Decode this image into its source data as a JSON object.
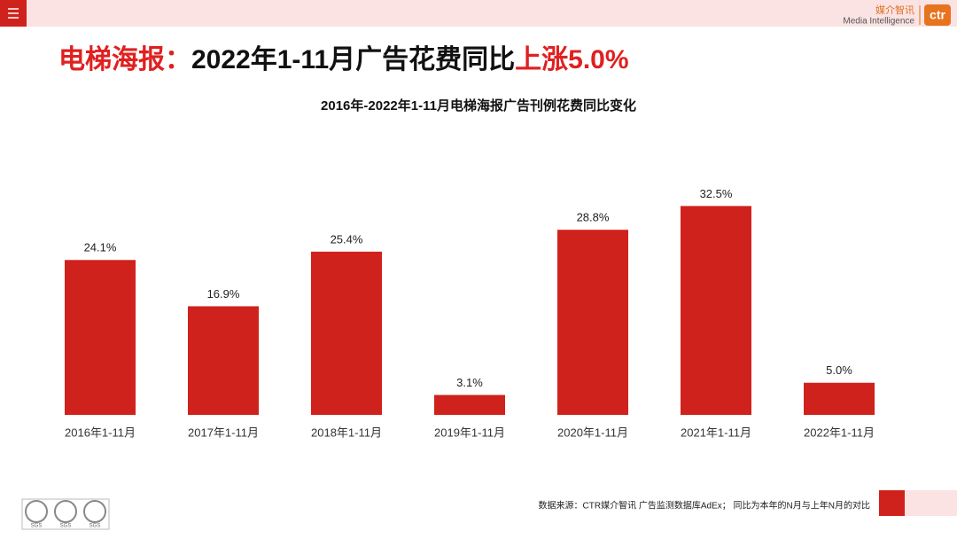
{
  "header": {
    "brand_cn": "媒介智讯",
    "brand_en": "Media Intelligence",
    "logo": "ctr",
    "title_parts": [
      "电梯海报：",
      "2022年1-11月广告花费同比",
      "上涨5.0%"
    ]
  },
  "chart_data": {
    "type": "bar",
    "title": "2016年-2022年1-11月电梯海报广告刊例花费同比变化",
    "categories": [
      "2016年1-11月",
      "2017年1-11月",
      "2018年1-11月",
      "2019年1-11月",
      "2020年1-11月",
      "2021年1-11月",
      "2022年1-11月"
    ],
    "values": [
      24.1,
      16.9,
      25.4,
      3.1,
      28.8,
      32.5,
      5.0
    ],
    "value_labels": [
      "24.1%",
      "16.9%",
      "25.4%",
      "3.1%",
      "28.8%",
      "32.5%",
      "5.0%"
    ],
    "color": "#d0221c"
  },
  "footer": {
    "source": "数据来源：CTR媒介智讯 广告监测数据库AdEx； 同比为本年的N月与上年N月的对比",
    "badges": [
      "SGS",
      "SGS",
      "SGS"
    ]
  }
}
